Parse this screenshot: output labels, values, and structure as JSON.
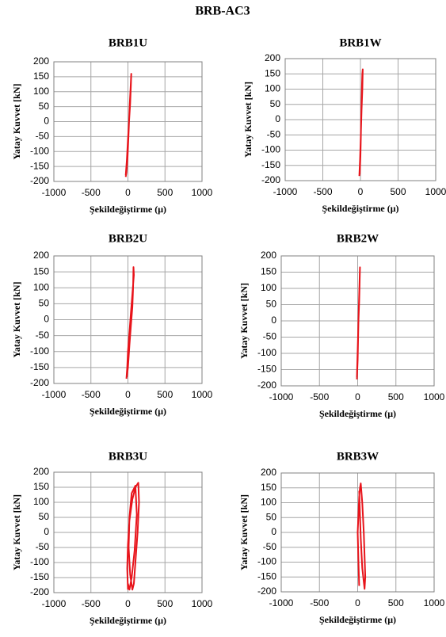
{
  "title": "BRB-AC3",
  "chart_data": [
    {
      "type": "line",
      "title": "BRB1U",
      "xlabel": "Şekildeğiştirme (μ)",
      "ylabel": "Yatay Kuvvet [kN]",
      "xlim": [
        -1000,
        1000
      ],
      "ylim": [
        -200,
        200
      ],
      "xticks": [
        -1000,
        -500,
        0,
        500,
        1000
      ],
      "yticks": [
        -200,
        -150,
        -100,
        -50,
        0,
        50,
        100,
        150,
        200
      ],
      "grid": true,
      "x": [
        -30,
        -20,
        -5,
        5,
        15,
        25,
        35,
        45,
        40,
        30,
        15,
        0,
        -15,
        -30
      ],
      "series": [
        {
          "color": "#e8141b",
          "values": [
            -185,
            -170,
            -120,
            -60,
            0,
            60,
            110,
            160,
            120,
            60,
            0,
            -60,
            -130,
            -180
          ]
        }
      ]
    },
    {
      "type": "line",
      "title": "BRB1W",
      "xlabel": "Şekildeğiştirme (μ)",
      "ylabel": "Yatay Kuvvet [kN]",
      "xlim": [
        -1000,
        1000
      ],
      "ylim": [
        -200,
        200
      ],
      "xticks": [
        -1000,
        -500,
        0,
        500,
        1000
      ],
      "yticks": [
        -200,
        -150,
        -100,
        -50,
        0,
        50,
        100,
        150,
        200
      ],
      "grid": true,
      "x": [
        -10,
        0,
        5,
        10,
        15,
        20,
        25,
        30,
        25,
        15,
        5,
        -5,
        -15
      ],
      "series": [
        {
          "color": "#e8141b",
          "values": [
            -180,
            -120,
            -60,
            0,
            60,
            110,
            150,
            165,
            100,
            30,
            -50,
            -130,
            -185
          ]
        }
      ]
    },
    {
      "type": "line",
      "title": "BRB2U",
      "xlabel": "Şekildeğiştirme (μ)",
      "ylabel": "Yatay Kuvvet [kN]",
      "xlim": [
        -1000,
        1000
      ],
      "ylim": [
        -200,
        200
      ],
      "xticks": [
        -1000,
        -500,
        0,
        500,
        1000
      ],
      "yticks": [
        -200,
        -150,
        -100,
        -50,
        0,
        50,
        100,
        150,
        200
      ],
      "grid": true,
      "x": [
        -20,
        -10,
        0,
        20,
        40,
        60,
        80,
        75,
        70,
        60,
        40,
        20,
        0,
        -15
      ],
      "series": [
        {
          "color": "#e8141b",
          "values": [
            -185,
            -150,
            -100,
            -40,
            20,
            80,
            140,
            165,
            100,
            40,
            -20,
            -80,
            -150,
            -180
          ]
        }
      ]
    },
    {
      "type": "line",
      "title": "BRB2W",
      "xlabel": "Şekildeğiştirme (μ)",
      "ylabel": "Yatay Kuvvet [kN]",
      "xlim": [
        -1000,
        1000
      ],
      "ylim": [
        -200,
        200
      ],
      "xticks": [
        -1000,
        -500,
        0,
        500,
        1000
      ],
      "yticks": [
        -200,
        -150,
        -100,
        -50,
        0,
        50,
        100,
        150,
        200
      ],
      "grid": true,
      "x": [
        -10,
        0,
        5,
        10,
        20,
        25,
        30,
        20,
        10,
        0,
        -10
      ],
      "series": [
        {
          "color": "#e8141b",
          "values": [
            -180,
            -120,
            -60,
            0,
            60,
            110,
            165,
            80,
            0,
            -90,
            -175
          ]
        }
      ]
    },
    {
      "type": "line",
      "title": "BRB3U",
      "xlabel": "Şekildeğiştirme (μ)",
      "ylabel": "Yatay Kuvvet [kN]",
      "xlim": [
        -1000,
        1000
      ],
      "ylim": [
        -200,
        200
      ],
      "xticks": [
        -1000,
        -500,
        0,
        500,
        1000
      ],
      "yticks": [
        -200,
        -150,
        -100,
        -50,
        0,
        50,
        100,
        150,
        200
      ],
      "grid": true,
      "x": [
        0,
        -10,
        0,
        20,
        60,
        100,
        140,
        150,
        130,
        100,
        80,
        60,
        30,
        10,
        20,
        50,
        100,
        120,
        90,
        50,
        20,
        0
      ],
      "series": [
        {
          "color": "#e8141b",
          "values": [
            -190,
            -120,
            -40,
            40,
            110,
            150,
            165,
            100,
            0,
            -100,
            -170,
            -190,
            -140,
            -50,
            50,
            130,
            155,
            60,
            -60,
            -150,
            -190,
            -170
          ]
        }
      ]
    },
    {
      "type": "line",
      "title": "BRB3W",
      "xlabel": "Şekildeğiştirme (μ)",
      "ylabel": "Yatay Kuvvet [kN]",
      "xlim": [
        -1000,
        1000
      ],
      "ylim": [
        -200,
        200
      ],
      "xticks": [
        -1000,
        -500,
        0,
        500,
        1000
      ],
      "yticks": [
        -200,
        -150,
        -100,
        -50,
        0,
        50,
        100,
        150,
        200
      ],
      "grid": true,
      "x": [
        20,
        10,
        0,
        10,
        20,
        30,
        40,
        60,
        80,
        100,
        90,
        60,
        40,
        30,
        20
      ],
      "series": [
        {
          "color": "#e8141b",
          "values": [
            -180,
            -100,
            0,
            60,
            120,
            150,
            165,
            100,
            0,
            -150,
            -190,
            -120,
            -20,
            60,
            140
          ]
        }
      ]
    }
  ]
}
